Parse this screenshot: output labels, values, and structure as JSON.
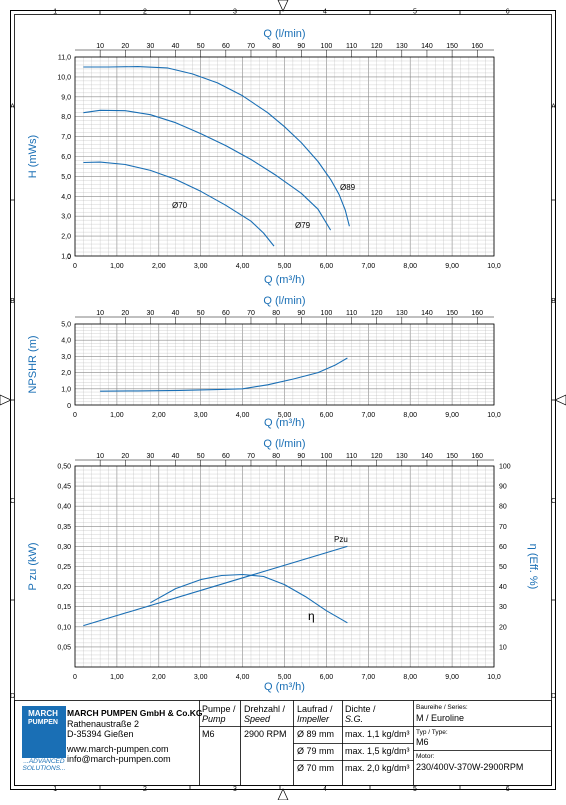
{
  "sheet": {
    "zone_cols": [
      "1",
      "2",
      "3",
      "4",
      "5",
      "6"
    ],
    "zone_rows": [
      "A",
      "B",
      "C",
      "D"
    ]
  },
  "colors": {
    "curve": "#1a6fb5",
    "axis_label": "#1a6fb5",
    "grid": "#b5b5b5",
    "frame": "#000000"
  },
  "chart_data": [
    {
      "type": "line",
      "id": "head",
      "xlabel": "Q (m³/h)",
      "x2label": "Q (l/min)",
      "ylabel": "H (mWs)",
      "xlim": [
        0,
        10
      ],
      "ylim": [
        1,
        11
      ],
      "x_ticks": [
        "0",
        "1,00",
        "2,00",
        "3,00",
        "4,00",
        "5,00",
        "6,00",
        "7,00",
        "8,00",
        "9,00",
        "10,0"
      ],
      "x2_ticks": [
        "10",
        "20",
        "30",
        "40",
        "50",
        "60",
        "70",
        "80",
        "90",
        "100",
        "110",
        "120",
        "130",
        "140",
        "150",
        "160"
      ],
      "y_ticks": [
        "1,0",
        "2,0",
        "3,0",
        "4,0",
        "5,0",
        "6,0",
        "7,0",
        "8,0",
        "9,0",
        "10,0",
        "11,0"
      ],
      "grid": true,
      "series": [
        {
          "name": "Ø89",
          "x": [
            0.2,
            0.8,
            1.5,
            2.2,
            2.8,
            3.4,
            4.0,
            4.6,
            5.0,
            5.4,
            5.8,
            6.1,
            6.3,
            6.45,
            6.55
          ],
          "y": [
            10.5,
            10.5,
            10.52,
            10.45,
            10.15,
            9.7,
            9.05,
            8.2,
            7.5,
            6.7,
            5.75,
            4.85,
            4.1,
            3.3,
            2.5
          ]
        },
        {
          "name": "Ø79",
          "x": [
            0.2,
            0.6,
            1.2,
            1.8,
            2.4,
            3.0,
            3.6,
            4.2,
            4.8,
            5.4,
            5.8,
            6.1
          ],
          "y": [
            8.2,
            8.32,
            8.3,
            8.1,
            7.7,
            7.15,
            6.55,
            5.85,
            5.05,
            4.15,
            3.35,
            2.3
          ]
        },
        {
          "name": "Ø70",
          "x": [
            0.2,
            0.6,
            1.2,
            1.8,
            2.4,
            3.0,
            3.6,
            4.2,
            4.5,
            4.75
          ],
          "y": [
            5.7,
            5.72,
            5.6,
            5.3,
            4.85,
            4.25,
            3.55,
            2.75,
            2.15,
            1.5
          ]
        }
      ],
      "annotations": [
        "Ø89",
        "Ø79",
        "Ø70"
      ]
    },
    {
      "type": "line",
      "id": "npsh",
      "xlabel": "Q (m³/h)",
      "x2label": "Q (l/min)",
      "ylabel": "NPSHR (m)",
      "xlim": [
        0,
        10
      ],
      "ylim": [
        0,
        5
      ],
      "x_ticks": [
        "0",
        "1,00",
        "2,00",
        "3,00",
        "4,00",
        "5,00",
        "6,00",
        "7,00",
        "8,00",
        "9,00",
        "10,0"
      ],
      "x2_ticks": [
        "10",
        "20",
        "30",
        "40",
        "50",
        "60",
        "70",
        "80",
        "90",
        "100",
        "110",
        "120",
        "130",
        "140",
        "150",
        "160"
      ],
      "y_ticks": [
        "1,0",
        "2,0",
        "3,0",
        "4,0",
        "5,0"
      ],
      "grid": true,
      "series": [
        {
          "name": "NPSHR",
          "x": [
            0.6,
            1.5,
            2.5,
            3.5,
            4.0,
            4.6,
            5.2,
            5.8,
            6.2,
            6.5
          ],
          "y": [
            0.85,
            0.87,
            0.9,
            0.96,
            1.0,
            1.25,
            1.6,
            2.0,
            2.45,
            2.9
          ]
        }
      ]
    },
    {
      "type": "line",
      "id": "power",
      "xlabel": "Q (m³/h)",
      "x2label": "Q (l/min)",
      "ylabel": "P zu (kW)",
      "y2label": "η (Eff. %)",
      "xlim": [
        0,
        10
      ],
      "ylim": [
        0,
        0.5
      ],
      "y2lim": [
        0,
        100
      ],
      "x_ticks": [
        "0",
        "1,00",
        "2,00",
        "3,00",
        "4,00",
        "5,00",
        "6,00",
        "7,00",
        "8,00",
        "9,00",
        "10,0"
      ],
      "x2_ticks": [
        "10",
        "20",
        "30",
        "40",
        "50",
        "60",
        "70",
        "80",
        "90",
        "100",
        "110",
        "120",
        "130",
        "140",
        "150",
        "160"
      ],
      "y_ticks": [
        "0,05",
        "0,10",
        "0,15",
        "0,20",
        "0,25",
        "0,30",
        "0,35",
        "0,40",
        "0,45",
        "0,50"
      ],
      "y2_ticks": [
        "10",
        "20",
        "30",
        "40",
        "50",
        "60",
        "70",
        "80",
        "90",
        "100"
      ],
      "grid": true,
      "series": [
        {
          "name": "Pzu",
          "axis": "left",
          "x": [
            0.2,
            6.5
          ],
          "y": [
            0.103,
            0.3
          ]
        },
        {
          "name": "η",
          "axis": "right",
          "x": [
            1.8,
            2.4,
            3.0,
            3.5,
            4.0,
            4.5,
            5.0,
            5.5,
            6.0,
            6.5
          ],
          "y": [
            32,
            39,
            43.5,
            45.5,
            46,
            45,
            41,
            35,
            28,
            22
          ]
        }
      ],
      "annotations": [
        "Pzu",
        "η"
      ]
    }
  ],
  "titleblock": {
    "company": "MARCH PUMPEN GmbH & Co.KG",
    "street": "Rathenaustraße 2",
    "city": "D-35394 Gießen",
    "web": "www.march-pumpen.com",
    "mail": "info@march-pumpen.com",
    "logo_top": "MARCH",
    "logo_mid": "PUMPEN",
    "logo_tag1": "...ADVANCED",
    "logo_tag2": "SOLUTIONS...",
    "pump_h1": "Pumpe /",
    "pump_h2": "Pump",
    "pump_val": "M6",
    "speed_h1": "Drehzahl /",
    "speed_h2": "Speed",
    "speed_val": "2900 RPM",
    "impeller_h1": "Laufrad /",
    "impeller_h2": "Impeller",
    "impellers": [
      "Ø 89 mm",
      "Ø 79 mm",
      "Ø 70 mm"
    ],
    "sg_h1": "Dichte /",
    "sg_h2": "S.G.",
    "densities": [
      "max. 1,1 kg/dm³",
      "max. 1,5 kg/dm³",
      "max. 2,0 kg/dm³"
    ],
    "series_label": "Baureihe / Series:",
    "series_val": "M / Euroline",
    "type_label": "Typ / Type:",
    "type_val": "M6",
    "motor_label": "Motor:",
    "motor_val": "230/400V-370W-2900RPM"
  }
}
